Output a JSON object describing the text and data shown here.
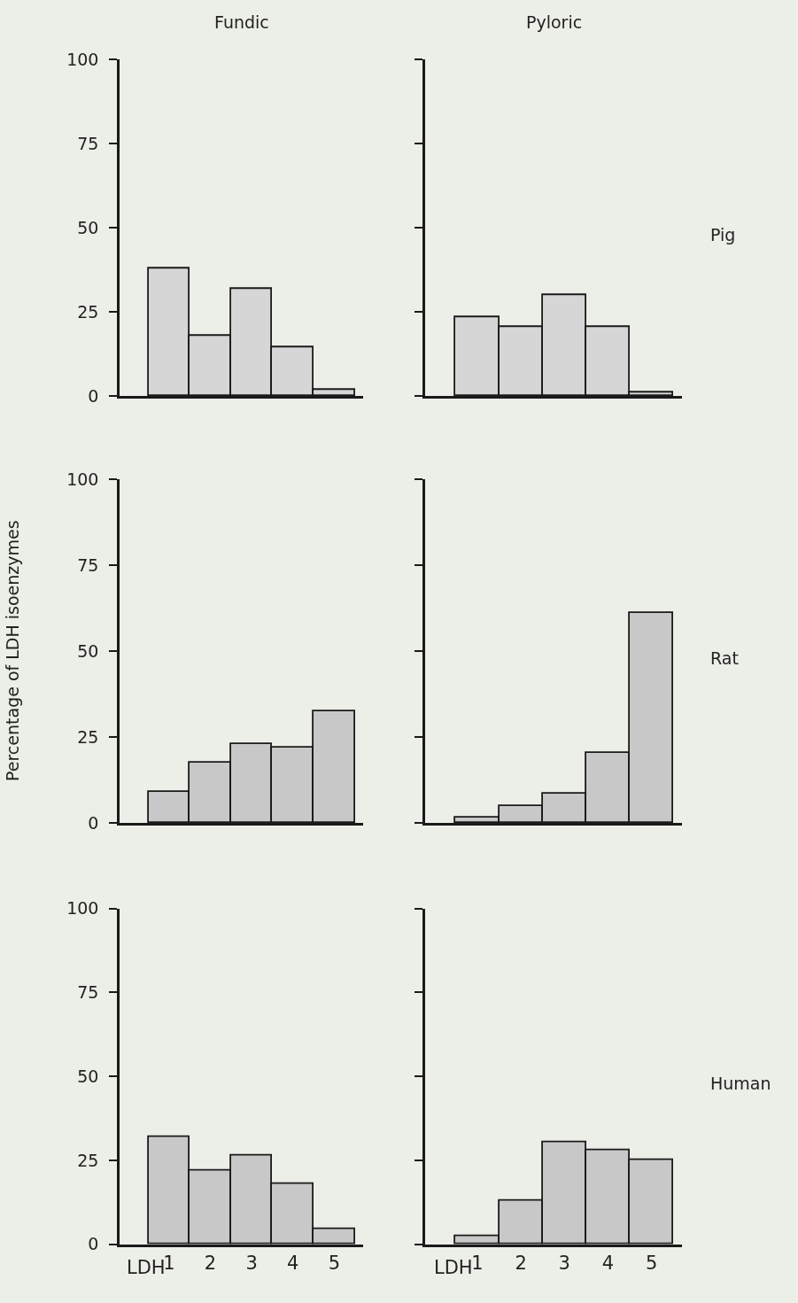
{
  "chart_data": [
    {
      "type": "bar",
      "title": "Fundic",
      "categories": [
        "1",
        "2",
        "3",
        "4",
        "5"
      ],
      "values": [
        38,
        18,
        32,
        14.5,
        2
      ],
      "color": "#d6d6d6",
      "ylim": [
        0,
        100
      ],
      "yticks": [
        0,
        25,
        50,
        75,
        100
      ],
      "tick_labels": "y"
    },
    {
      "type": "bar",
      "title": "Pyloric",
      "categories": [
        "1",
        "2",
        "3",
        "4",
        "5"
      ],
      "values": [
        23.5,
        20.5,
        30,
        20.5,
        1
      ],
      "color": "#d6d6d6",
      "ylim": [
        0,
        100
      ],
      "yticks": [
        0,
        25,
        50,
        75,
        100
      ],
      "tick_labels": false,
      "annotations": [
        "Pig"
      ]
    },
    {
      "type": "bar",
      "ylabel": "Percentage of LDH isoenzymes",
      "categories": [
        "1",
        "2",
        "3",
        "4",
        "5"
      ],
      "values": [
        9,
        17.5,
        23,
        22,
        32.5
      ],
      "color": "#c8c8c8",
      "ylim": [
        0,
        100
      ],
      "yticks": [
        0,
        25,
        50,
        75,
        100
      ],
      "tick_labels": "y"
    },
    {
      "type": "bar",
      "categories": [
        "1",
        "2",
        "3",
        "4",
        "5"
      ],
      "values": [
        1.5,
        5,
        8.5,
        20.5,
        61
      ],
      "color": "#c8c8c8",
      "ylim": [
        0,
        100
      ],
      "yticks": [
        0,
        25,
        50,
        75,
        100
      ],
      "tick_labels": false,
      "annotations": [
        "Rat"
      ]
    },
    {
      "type": "bar",
      "xlabel": "LDH",
      "categories": [
        "1",
        "2",
        "3",
        "4",
        "5"
      ],
      "values": [
        32,
        22,
        26.5,
        18,
        4.5
      ],
      "color": "#c8c8c8",
      "ylim": [
        0,
        100
      ],
      "yticks": [
        0,
        25,
        50,
        75,
        100
      ]
    },
    {
      "type": "bar",
      "xlabel": "LDH",
      "categories": [
        "1",
        "2",
        "3",
        "4",
        "5"
      ],
      "values": [
        2.5,
        13,
        30.5,
        28,
        25
      ],
      "color": "#c8c8c8",
      "ylim": [
        0,
        100
      ],
      "yticks": [
        0,
        25,
        50,
        75,
        100
      ],
      "tick_labels": "x",
      "annotations": [
        "Human"
      ]
    }
  ]
}
